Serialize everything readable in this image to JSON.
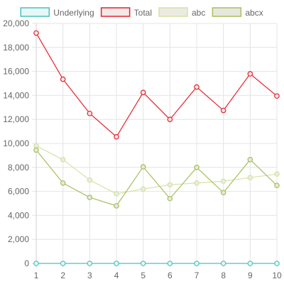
{
  "chart_data": {
    "type": "line",
    "title": "",
    "xlabel": "",
    "ylabel": "",
    "x": [
      1,
      2,
      3,
      4,
      5,
      6,
      7,
      8,
      9,
      10
    ],
    "x_tick_labels": [
      "1",
      "2",
      "3",
      "4",
      "5",
      "6",
      "7",
      "8",
      "9",
      "10"
    ],
    "ylim": [
      0,
      20000
    ],
    "y_tick_labels": [
      "0",
      "2,000",
      "4,000",
      "6,000",
      "8,000",
      "10,000",
      "12,000",
      "14,000",
      "16,000",
      "18,000",
      "20,000"
    ],
    "grid": true,
    "legend_position": "top",
    "series": [
      {
        "name": "Underlying",
        "color": "#4bc0c0",
        "fill": "#e6f7f7",
        "values": [
          0,
          0,
          0,
          0,
          0,
          0,
          0,
          0,
          0,
          0
        ]
      },
      {
        "name": "Total",
        "color": "#e8212b",
        "fill": "#f2e8e8",
        "values": [
          19200,
          15350,
          12500,
          10550,
          14250,
          12000,
          14700,
          12750,
          15800,
          13950
        ]
      },
      {
        "name": "abc",
        "color": "#d4e3a4",
        "fill": "#ebebe2",
        "values": [
          9800,
          8650,
          6950,
          5800,
          6200,
          6550,
          6700,
          6850,
          7150,
          7450
        ]
      },
      {
        "name": "abcx",
        "color": "#a8bf5e",
        "fill": "#e6e8dc",
        "values": [
          9450,
          6700,
          5500,
          4800,
          8050,
          5400,
          8000,
          5900,
          8650,
          6500
        ]
      }
    ]
  }
}
